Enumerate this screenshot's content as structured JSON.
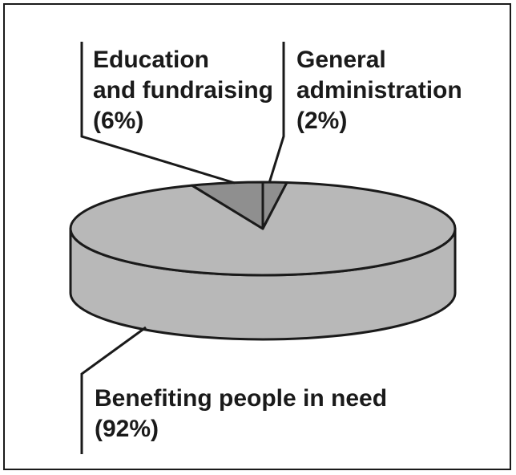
{
  "chart_data": {
    "type": "pie",
    "style": "3d",
    "categories": [
      "Benefiting people in need",
      "Education and fundraising",
      "General administration"
    ],
    "values": [
      92,
      6,
      2
    ],
    "labels": [
      {
        "line1": "Benefiting people in need",
        "line2": "(92%)"
      },
      {
        "line1": "Education",
        "line2": "and fundraising",
        "line3": "(6%)"
      },
      {
        "line1": "General",
        "line2": "administration",
        "line3": "(2%)"
      }
    ],
    "colors": {
      "large_slice": "#b8b8b8",
      "small_slices": "#8f8f8f",
      "outline": "#1a1a1a"
    },
    "legend": "none"
  }
}
